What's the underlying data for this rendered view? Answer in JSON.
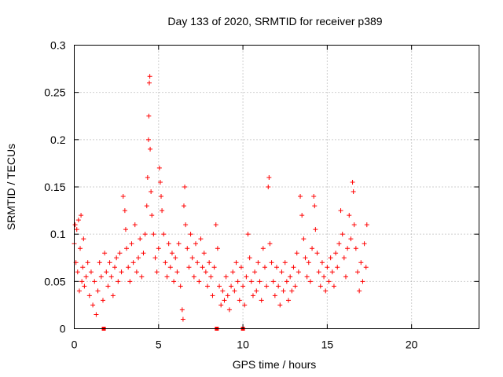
{
  "chart_data": {
    "type": "scatter",
    "title": "Day 133 of 2020, SRMTID for receiver p389",
    "xlabel": "GPS time / hours",
    "ylabel": "SRMTID / TECUs",
    "xlim": [
      0,
      24
    ],
    "ylim": [
      0,
      0.3
    ],
    "xticks": [
      0,
      5,
      10,
      15,
      20
    ],
    "yticks": [
      0,
      0.05,
      0.1,
      0.15,
      0.2,
      0.25,
      0.3
    ],
    "xtick_labels": [
      "0",
      "5",
      "10",
      "15",
      "20"
    ],
    "ytick_labels": [
      "0",
      "0.05",
      "0.1",
      "0.15",
      "0.2",
      "0.25",
      "0.3"
    ],
    "grid": true,
    "marker": "+",
    "color": "#ff0000",
    "series": [
      {
        "name": "SRMTID",
        "points": [
          [
            0.0,
            0.09
          ],
          [
            0.05,
            0.11
          ],
          [
            0.1,
            0.07
          ],
          [
            0.15,
            0.105
          ],
          [
            0.2,
            0.06
          ],
          [
            0.25,
            0.115
          ],
          [
            0.3,
            0.04
          ],
          [
            0.35,
            0.085
          ],
          [
            0.4,
            0.12
          ],
          [
            0.45,
            0.05
          ],
          [
            0.5,
            0.065
          ],
          [
            0.55,
            0.095
          ],
          [
            0.6,
            0.045
          ],
          [
            0.7,
            0.055
          ],
          [
            0.8,
            0.07
          ],
          [
            0.9,
            0.035
          ],
          [
            1.0,
            0.06
          ],
          [
            1.1,
            0.025
          ],
          [
            1.2,
            0.05
          ],
          [
            1.3,
            0.015
          ],
          [
            1.4,
            0.04
          ],
          [
            1.5,
            0.07
          ],
          [
            1.6,
            0.055
          ],
          [
            1.7,
            0.03
          ],
          [
            1.8,
            0.08
          ],
          [
            1.9,
            0.06
          ],
          [
            2.0,
            0.045
          ],
          [
            2.1,
            0.07
          ],
          [
            2.2,
            0.055
          ],
          [
            2.3,
            0.035
          ],
          [
            2.4,
            0.065
          ],
          [
            2.5,
            0.075
          ],
          [
            2.6,
            0.05
          ],
          [
            2.7,
            0.08
          ],
          [
            2.8,
            0.06
          ],
          [
            2.9,
            0.14
          ],
          [
            3.0,
            0.125
          ],
          [
            3.05,
            0.105
          ],
          [
            3.1,
            0.085
          ],
          [
            3.2,
            0.065
          ],
          [
            3.3,
            0.05
          ],
          [
            3.4,
            0.09
          ],
          [
            3.5,
            0.07
          ],
          [
            3.6,
            0.11
          ],
          [
            3.7,
            0.06
          ],
          [
            3.8,
            0.075
          ],
          [
            3.9,
            0.095
          ],
          [
            4.0,
            0.055
          ],
          [
            4.1,
            0.08
          ],
          [
            4.2,
            0.1
          ],
          [
            4.3,
            0.13
          ],
          [
            4.35,
            0.16
          ],
          [
            4.4,
            0.2
          ],
          [
            4.42,
            0.225
          ],
          [
            4.45,
            0.26
          ],
          [
            4.48,
            0.267
          ],
          [
            4.5,
            0.19
          ],
          [
            4.55,
            0.145
          ],
          [
            4.6,
            0.12
          ],
          [
            4.7,
            0.1
          ],
          [
            4.8,
            0.075
          ],
          [
            4.9,
            0.06
          ],
          [
            5.0,
            0.085
          ],
          [
            5.05,
            0.17
          ],
          [
            5.1,
            0.155
          ],
          [
            5.15,
            0.14
          ],
          [
            5.2,
            0.125
          ],
          [
            5.3,
            0.1
          ],
          [
            5.4,
            0.07
          ],
          [
            5.5,
            0.055
          ],
          [
            5.6,
            0.09
          ],
          [
            5.7,
            0.065
          ],
          [
            5.8,
            0.08
          ],
          [
            5.9,
            0.05
          ],
          [
            6.0,
            0.075
          ],
          [
            6.1,
            0.06
          ],
          [
            6.2,
            0.09
          ],
          [
            6.3,
            0.045
          ],
          [
            6.4,
            0.02
          ],
          [
            6.45,
            0.01
          ],
          [
            6.5,
            0.13
          ],
          [
            6.55,
            0.15
          ],
          [
            6.6,
            0.11
          ],
          [
            6.7,
            0.085
          ],
          [
            6.8,
            0.065
          ],
          [
            6.9,
            0.1
          ],
          [
            7.0,
            0.075
          ],
          [
            7.1,
            0.055
          ],
          [
            7.2,
            0.09
          ],
          [
            7.3,
            0.07
          ],
          [
            7.4,
            0.05
          ],
          [
            7.5,
            0.095
          ],
          [
            7.6,
            0.065
          ],
          [
            7.7,
            0.08
          ],
          [
            7.8,
            0.06
          ],
          [
            7.9,
            0.045
          ],
          [
            8.0,
            0.07
          ],
          [
            8.1,
            0.055
          ],
          [
            8.2,
            0.035
          ],
          [
            8.3,
            0.065
          ],
          [
            8.4,
            0.11
          ],
          [
            8.5,
            0.085
          ],
          [
            8.6,
            0.045
          ],
          [
            8.7,
            0.025
          ],
          [
            8.8,
            0.04
          ],
          [
            8.9,
            0.03
          ],
          [
            9.0,
            0.055
          ],
          [
            9.1,
            0.035
          ],
          [
            9.2,
            0.02
          ],
          [
            9.3,
            0.045
          ],
          [
            9.4,
            0.06
          ],
          [
            9.5,
            0.04
          ],
          [
            9.6,
            0.07
          ],
          [
            9.7,
            0.05
          ],
          [
            9.8,
            0.03
          ],
          [
            9.9,
            0.065
          ],
          [
            10.0,
            0.045
          ],
          [
            10.1,
            0.025
          ],
          [
            10.2,
            0.055
          ],
          [
            10.3,
            0.1
          ],
          [
            10.4,
            0.075
          ],
          [
            10.5,
            0.05
          ],
          [
            10.6,
            0.035
          ],
          [
            10.7,
            0.06
          ],
          [
            10.8,
            0.04
          ],
          [
            10.9,
            0.07
          ],
          [
            11.0,
            0.05
          ],
          [
            11.1,
            0.03
          ],
          [
            11.2,
            0.085
          ],
          [
            11.3,
            0.065
          ],
          [
            11.4,
            0.045
          ],
          [
            11.5,
            0.15
          ],
          [
            11.55,
            0.16
          ],
          [
            11.6,
            0.09
          ],
          [
            11.7,
            0.07
          ],
          [
            11.8,
            0.05
          ],
          [
            11.9,
            0.035
          ],
          [
            12.0,
            0.065
          ],
          [
            12.1,
            0.045
          ],
          [
            12.2,
            0.025
          ],
          [
            12.3,
            0.06
          ],
          [
            12.4,
            0.04
          ],
          [
            12.5,
            0.07
          ],
          [
            12.6,
            0.05
          ],
          [
            12.7,
            0.03
          ],
          [
            12.8,
            0.055
          ],
          [
            12.9,
            0.04
          ],
          [
            13.0,
            0.065
          ],
          [
            13.1,
            0.045
          ],
          [
            13.2,
            0.08
          ],
          [
            13.3,
            0.06
          ],
          [
            13.4,
            0.14
          ],
          [
            13.5,
            0.12
          ],
          [
            13.6,
            0.095
          ],
          [
            13.7,
            0.075
          ],
          [
            13.8,
            0.055
          ],
          [
            13.9,
            0.07
          ],
          [
            14.0,
            0.05
          ],
          [
            14.1,
            0.085
          ],
          [
            14.2,
            0.14
          ],
          [
            14.25,
            0.13
          ],
          [
            14.3,
            0.105
          ],
          [
            14.4,
            0.08
          ],
          [
            14.5,
            0.06
          ],
          [
            14.6,
            0.045
          ],
          [
            14.7,
            0.07
          ],
          [
            14.8,
            0.055
          ],
          [
            14.9,
            0.04
          ],
          [
            15.0,
            0.065
          ],
          [
            15.1,
            0.05
          ],
          [
            15.2,
            0.075
          ],
          [
            15.3,
            0.06
          ],
          [
            15.4,
            0.045
          ],
          [
            15.5,
            0.08
          ],
          [
            15.6,
            0.065
          ],
          [
            15.7,
            0.09
          ],
          [
            15.8,
            0.125
          ],
          [
            15.9,
            0.1
          ],
          [
            16.0,
            0.075
          ],
          [
            16.1,
            0.055
          ],
          [
            16.2,
            0.085
          ],
          [
            16.3,
            0.12
          ],
          [
            16.4,
            0.095
          ],
          [
            16.5,
            0.155
          ],
          [
            16.55,
            0.145
          ],
          [
            16.6,
            0.11
          ],
          [
            16.7,
            0.085
          ],
          [
            16.8,
            0.06
          ],
          [
            16.9,
            0.04
          ],
          [
            17.0,
            0.07
          ],
          [
            17.1,
            0.05
          ],
          [
            17.2,
            0.09
          ],
          [
            17.3,
            0.065
          ],
          [
            17.35,
            0.11
          ]
        ]
      }
    ],
    "axis_markers_x": [
      1.75,
      8.45,
      10.0
    ]
  }
}
